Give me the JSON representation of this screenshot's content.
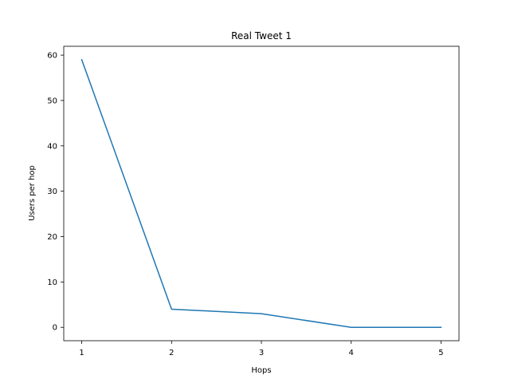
{
  "chart_data": {
    "type": "line",
    "title": "Real Tweet 1",
    "xlabel": "Hops",
    "ylabel": "Users per hop",
    "x": [
      1,
      2,
      3,
      4,
      5
    ],
    "series": [
      {
        "values": [
          59,
          4,
          3,
          0,
          0
        ],
        "color": "#1f77b4"
      }
    ],
    "xlim": [
      0.8,
      5.2
    ],
    "ylim": [
      -2.95,
      61.95
    ],
    "xticks": [
      1,
      2,
      3,
      4,
      5
    ],
    "yticks": [
      0,
      10,
      20,
      30,
      40,
      50,
      60
    ],
    "grid": false,
    "legend": "none"
  }
}
